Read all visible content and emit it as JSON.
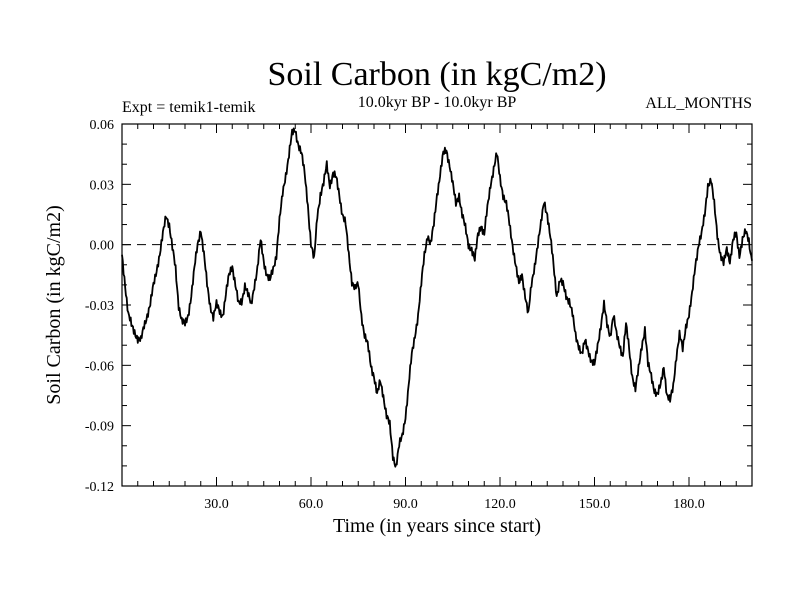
{
  "chart_data": {
    "type": "line",
    "title": "Soil Carbon (in kgC/m2)",
    "subtitle_left": "Expt = temik1-temik",
    "subtitle_center": "10.0kyr BP - 10.0kyr BP",
    "subtitle_right": "ALL_MONTHS",
    "xlabel": "Time (in years since start)",
    "ylabel": "Soil Carbon (in kgC/m2)",
    "xlim": [
      0,
      200
    ],
    "ylim": [
      -0.12,
      0.06
    ],
    "xticks": [
      30,
      60,
      90,
      120,
      150,
      180
    ],
    "xtick_labels": [
      "30.0",
      "60.0",
      "90.0",
      "120.0",
      "150.0",
      "180.0"
    ],
    "yticks": [
      0.06,
      0.03,
      0.0,
      -0.03,
      -0.06,
      -0.09,
      -0.12
    ],
    "ytick_labels": [
      "0.06",
      "0.03",
      "0.00",
      "-0.03",
      "-0.06",
      "-0.09",
      "-0.12"
    ],
    "reference_line": {
      "y": 0.0,
      "style": "dashed"
    },
    "series": [
      {
        "name": "Soil Carbon",
        "x": [
          0,
          1,
          2,
          3,
          4,
          5,
          6,
          7,
          8,
          9,
          10,
          11,
          12,
          13,
          14,
          15,
          16,
          17,
          18,
          19,
          20,
          21,
          22,
          23,
          24,
          25,
          26,
          27,
          28,
          29,
          30,
          31,
          32,
          33,
          34,
          35,
          36,
          37,
          38,
          39,
          40,
          41,
          42,
          43,
          44,
          45,
          46,
          47,
          48,
          49,
          50,
          51,
          52,
          53,
          54,
          55,
          56,
          57,
          58,
          59,
          60,
          61,
          62,
          63,
          64,
          65,
          66,
          67,
          68,
          69,
          70,
          71,
          72,
          73,
          74,
          75,
          76,
          77,
          78,
          79,
          80,
          81,
          82,
          83,
          84,
          85,
          86,
          87,
          88,
          89,
          90,
          91,
          92,
          93,
          94,
          95,
          96,
          97,
          98,
          99,
          100,
          101,
          102,
          103,
          104,
          105,
          106,
          107,
          108,
          109,
          110,
          111,
          112,
          113,
          114,
          115,
          116,
          117,
          118,
          119,
          120,
          121,
          122,
          123,
          124,
          125,
          126,
          127,
          128,
          129,
          130,
          131,
          132,
          133,
          134,
          135,
          136,
          137,
          138,
          139,
          140,
          141,
          142,
          143,
          144,
          145,
          146,
          147,
          148,
          149,
          150,
          151,
          152,
          153,
          154,
          155,
          156,
          157,
          158,
          159,
          160,
          161,
          162,
          163,
          164,
          165,
          166,
          167,
          168,
          169,
          170,
          171,
          172,
          173,
          174,
          175,
          176,
          177,
          178,
          179,
          180,
          181,
          182,
          183,
          184,
          185,
          186,
          187,
          188,
          189,
          190,
          191,
          192,
          193,
          194,
          195,
          196,
          197,
          198,
          199,
          200
        ],
        "values": [
          -0.005,
          -0.02,
          -0.035,
          -0.04,
          -0.043,
          -0.047,
          -0.048,
          -0.04,
          -0.035,
          -0.03,
          -0.02,
          -0.012,
          -0.005,
          0.005,
          0.015,
          0.01,
          -0.002,
          -0.012,
          -0.03,
          -0.038,
          -0.04,
          -0.035,
          -0.025,
          -0.012,
          0.0,
          0.008,
          -0.005,
          -0.02,
          -0.03,
          -0.036,
          -0.03,
          -0.033,
          -0.035,
          -0.025,
          -0.015,
          -0.01,
          -0.02,
          -0.03,
          -0.028,
          -0.02,
          -0.025,
          -0.03,
          -0.02,
          -0.012,
          0.002,
          -0.008,
          -0.015,
          -0.018,
          -0.012,
          -0.005,
          0.012,
          0.025,
          0.035,
          0.045,
          0.055,
          0.057,
          0.05,
          0.045,
          0.035,
          0.02,
          0.0,
          -0.008,
          0.015,
          0.025,
          0.03,
          0.04,
          0.03,
          0.035,
          0.033,
          0.025,
          0.015,
          0.01,
          -0.005,
          -0.018,
          -0.022,
          -0.02,
          -0.035,
          -0.045,
          -0.05,
          -0.06,
          -0.065,
          -0.075,
          -0.068,
          -0.075,
          -0.085,
          -0.09,
          -0.105,
          -0.11,
          -0.1,
          -0.095,
          -0.085,
          -0.07,
          -0.055,
          -0.045,
          -0.035,
          -0.02,
          -0.005,
          0.005,
          0.0,
          0.01,
          0.025,
          0.035,
          0.045,
          0.047,
          0.04,
          0.03,
          0.02,
          0.025,
          0.015,
          0.008,
          0.0,
          -0.002,
          -0.008,
          0.005,
          0.01,
          0.005,
          0.018,
          0.03,
          0.038,
          0.045,
          0.033,
          0.025,
          0.02,
          0.01,
          0.0,
          -0.01,
          -0.02,
          -0.015,
          -0.025,
          -0.035,
          -0.02,
          -0.01,
          0.0,
          0.01,
          0.022,
          0.015,
          0.003,
          -0.01,
          -0.025,
          -0.018,
          -0.02,
          -0.025,
          -0.028,
          -0.035,
          -0.045,
          -0.05,
          -0.055,
          -0.048,
          -0.052,
          -0.058,
          -0.06,
          -0.05,
          -0.04,
          -0.03,
          -0.04,
          -0.045,
          -0.035,
          -0.045,
          -0.05,
          -0.055,
          -0.04,
          -0.052,
          -0.065,
          -0.072,
          -0.062,
          -0.05,
          -0.042,
          -0.06,
          -0.065,
          -0.072,
          -0.075,
          -0.07,
          -0.06,
          -0.075,
          -0.078,
          -0.07,
          -0.055,
          -0.045,
          -0.052,
          -0.04,
          -0.035,
          -0.025,
          -0.01,
          0.0,
          0.005,
          0.015,
          0.03,
          0.032,
          0.02,
          0.005,
          -0.005,
          -0.01,
          -0.002,
          -0.008,
          0.002,
          0.005,
          -0.005,
          0.003,
          0.006,
          0.002,
          -0.008
        ]
      }
    ]
  }
}
